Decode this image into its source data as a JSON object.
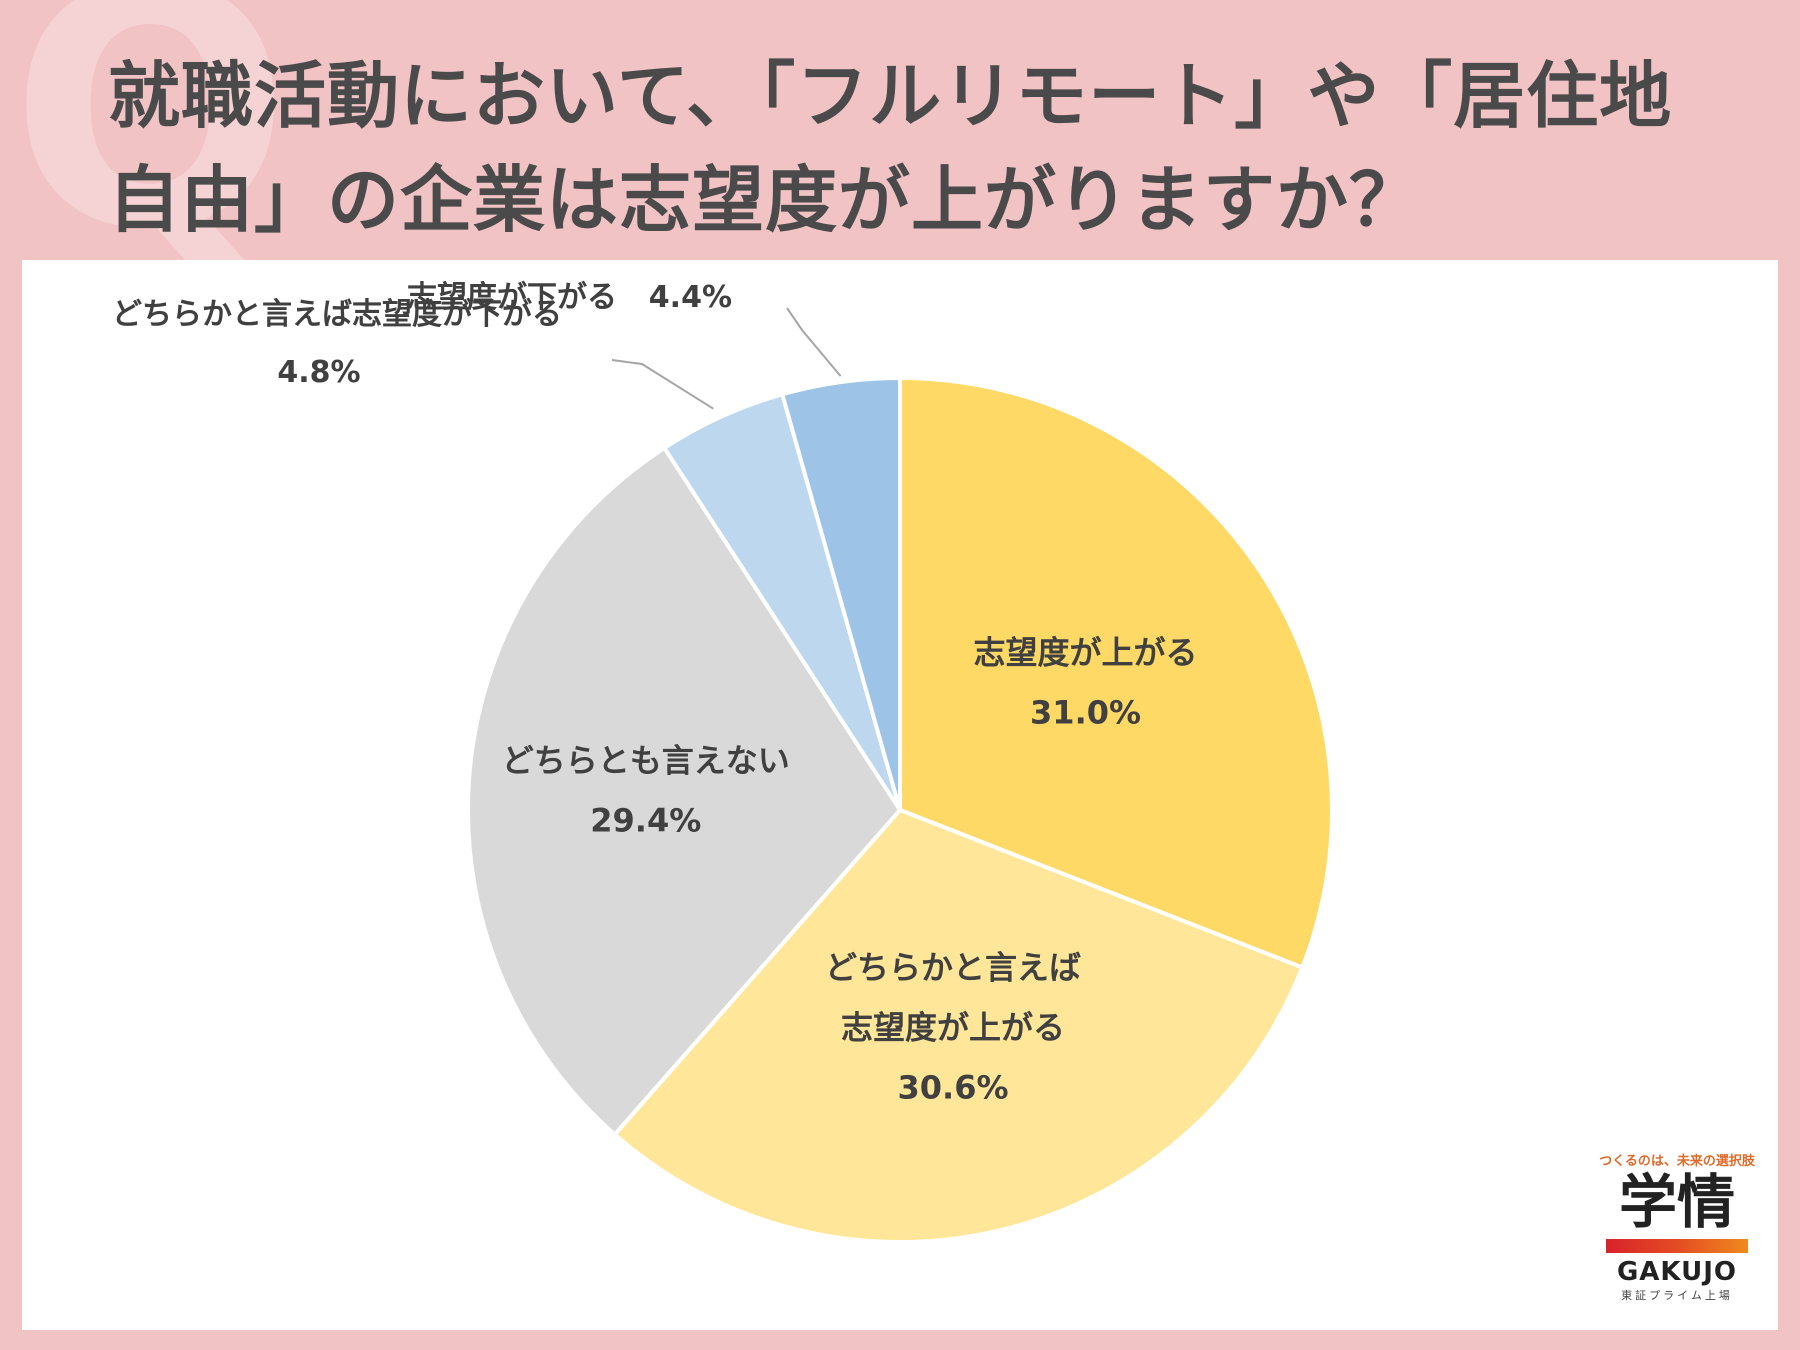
{
  "title": {
    "line1": "就職活動において、「フルリモート」や「居住地",
    "line2": "自由」の企業は志望度が上がりますか？"
  },
  "q_mark": "Q",
  "chart_data": {
    "type": "pie",
    "title": "就職活動において、「フルリモート」や「居住地自由」の企業は志望度が上がりますか？",
    "slices": [
      {
        "label": "志望度が上がる",
        "value": 31.0,
        "value_label": "31.0%",
        "color": "#ffd966"
      },
      {
        "label": "どちらかと言えば志望度が上がる",
        "label_lines": [
          "どちらかと言えば",
          "志望度が上がる"
        ],
        "value": 30.6,
        "value_label": "30.6%",
        "color": "#ffe699"
      },
      {
        "label": "どちらとも言えない",
        "value": 29.4,
        "value_label": "29.4%",
        "color": "#d9d9d9"
      },
      {
        "label": "どちらかと言えば志望度が下がる",
        "value": 4.8,
        "value_label": "4.8%",
        "color": "#bdd7ee"
      },
      {
        "label": "志望度が下がる",
        "value": 4.4,
        "value_label": "4.4%",
        "color": "#9dc3e6"
      }
    ],
    "start": "12 o'clock",
    "direction": "clockwise",
    "legend": "none"
  },
  "logo": {
    "tagline": "つくるのは、未来の選択肢",
    "kanji": "学情",
    "brand": "GAKUJO",
    "sub": "東証プライム上場"
  }
}
